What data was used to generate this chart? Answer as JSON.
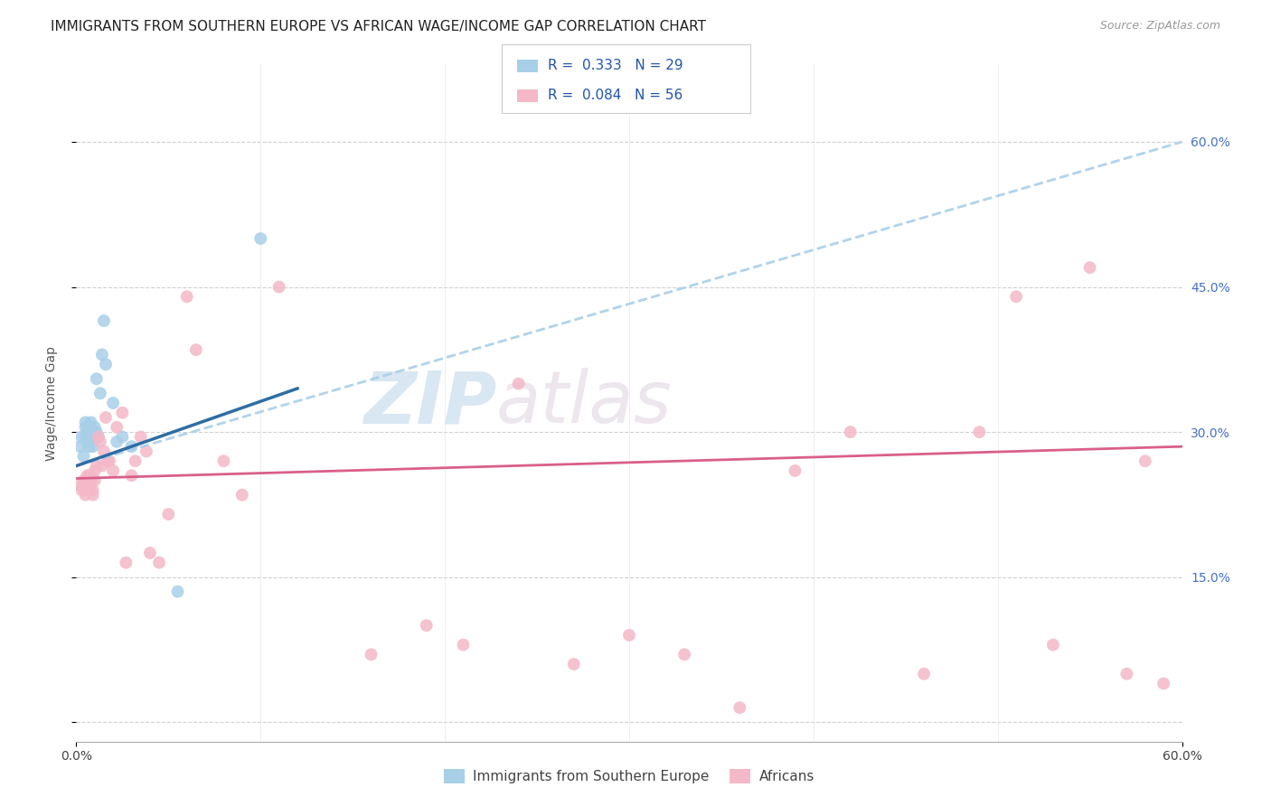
{
  "title": "IMMIGRANTS FROM SOUTHERN EUROPE VS AFRICAN WAGE/INCOME GAP CORRELATION CHART",
  "source": "Source: ZipAtlas.com",
  "ylabel": "Wage/Income Gap",
  "xlim": [
    0.0,
    0.6
  ],
  "ylim": [
    -0.02,
    0.68
  ],
  "ytick_vals": [
    0.0,
    0.15,
    0.3,
    0.45,
    0.6
  ],
  "ytick_labels": [
    "",
    "15.0%",
    "30.0%",
    "45.0%",
    "60.0%"
  ],
  "legend_label1": "R =  0.333   N = 29",
  "legend_label2": "R =  0.084   N = 56",
  "legend_sublabel1": "Immigrants from Southern Europe",
  "legend_sublabel2": "Africans",
  "color_blue": "#a8cfe8",
  "color_pink": "#f4b8c8",
  "color_blue_line": "#2e6da4",
  "color_pink_line": "#d95f8a",
  "color_dashed": "#a8cfe8",
  "watermark_zip": "ZIP",
  "watermark_atlas": "atlas",
  "blue_x": [
    0.002,
    0.003,
    0.004,
    0.005,
    0.005,
    0.005,
    0.006,
    0.006,
    0.007,
    0.007,
    0.008,
    0.008,
    0.009,
    0.009,
    0.01,
    0.01,
    0.011,
    0.011,
    0.012,
    0.013,
    0.014,
    0.015,
    0.016,
    0.02,
    0.022,
    0.025,
    0.03,
    0.055,
    0.1
  ],
  "blue_y": [
    0.285,
    0.295,
    0.275,
    0.295,
    0.305,
    0.31,
    0.29,
    0.3,
    0.285,
    0.305,
    0.31,
    0.3,
    0.295,
    0.285,
    0.305,
    0.3,
    0.355,
    0.3,
    0.295,
    0.34,
    0.38,
    0.415,
    0.37,
    0.33,
    0.29,
    0.295,
    0.285,
    0.135,
    0.5
  ],
  "pink_x": [
    0.002,
    0.003,
    0.004,
    0.005,
    0.005,
    0.006,
    0.006,
    0.007,
    0.007,
    0.008,
    0.009,
    0.009,
    0.01,
    0.01,
    0.011,
    0.012,
    0.013,
    0.014,
    0.015,
    0.016,
    0.017,
    0.018,
    0.02,
    0.022,
    0.025,
    0.027,
    0.03,
    0.032,
    0.035,
    0.038,
    0.04,
    0.045,
    0.05,
    0.06,
    0.065,
    0.08,
    0.09,
    0.11,
    0.16,
    0.19,
    0.21,
    0.24,
    0.27,
    0.3,
    0.33,
    0.36,
    0.39,
    0.42,
    0.46,
    0.49,
    0.51,
    0.53,
    0.55,
    0.57,
    0.58,
    0.59
  ],
  "pink_y": [
    0.245,
    0.24,
    0.25,
    0.235,
    0.245,
    0.24,
    0.255,
    0.245,
    0.255,
    0.25,
    0.24,
    0.235,
    0.26,
    0.25,
    0.265,
    0.295,
    0.29,
    0.265,
    0.28,
    0.315,
    0.27,
    0.27,
    0.26,
    0.305,
    0.32,
    0.165,
    0.255,
    0.27,
    0.295,
    0.28,
    0.175,
    0.165,
    0.215,
    0.44,
    0.385,
    0.27,
    0.235,
    0.45,
    0.07,
    0.1,
    0.08,
    0.35,
    0.06,
    0.09,
    0.07,
    0.015,
    0.26,
    0.3,
    0.05,
    0.3,
    0.44,
    0.08,
    0.47,
    0.05,
    0.27,
    0.04
  ],
  "blue_line_xstart": 0.0,
  "blue_line_xend": 0.12,
  "blue_line_ystart": 0.265,
  "blue_line_yend": 0.345,
  "pink_line_xstart": 0.0,
  "pink_line_xend": 0.6,
  "pink_line_ystart": 0.252,
  "pink_line_yend": 0.285,
  "dashed_line_xstart": 0.0,
  "dashed_line_xend": 0.6,
  "dashed_line_ystart": 0.265,
  "dashed_line_yend": 0.6
}
